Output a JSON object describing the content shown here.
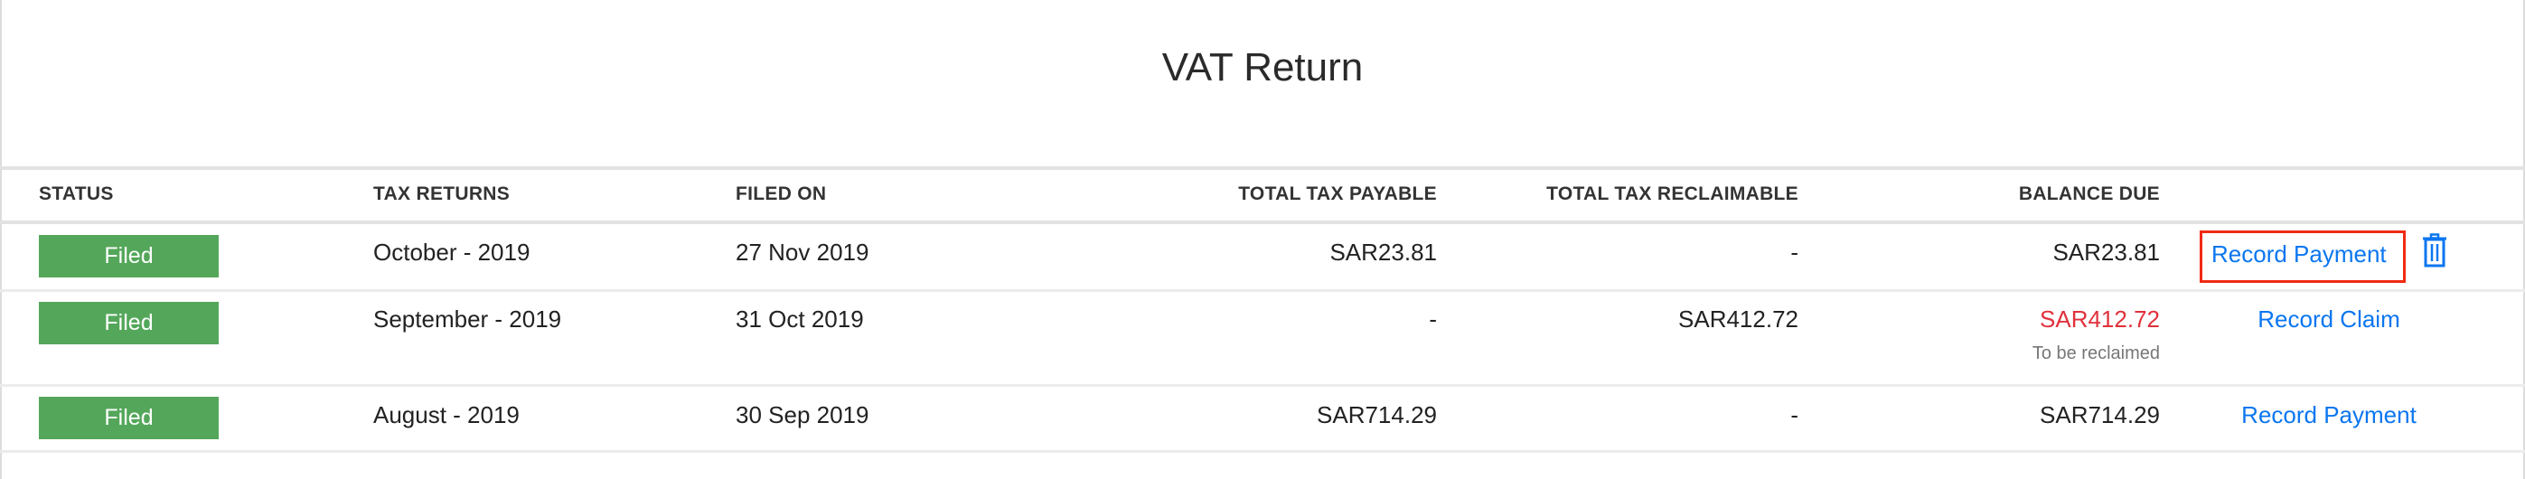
{
  "page": {
    "title": "VAT Return"
  },
  "table": {
    "headers": [
      "STATUS",
      "TAX RETURNS",
      "FILED ON",
      "TOTAL TAX PAYABLE",
      "TOTAL TAX RECLAIMABLE",
      "BALANCE DUE"
    ],
    "rows": [
      {
        "status": "Filed",
        "tax_return": "October - 2019",
        "filed_on": "27 Nov 2019",
        "payable": "SAR23.81",
        "reclaimable": "-",
        "balance": "SAR23.81",
        "balance_note": "",
        "action": "Record Payment",
        "delete_icon": "trash-icon"
      },
      {
        "status": "Filed",
        "tax_return": "September - 2019",
        "filed_on": "31 Oct 2019",
        "payable": "-",
        "reclaimable": "SAR412.72",
        "balance": "SAR412.72",
        "balance_note": "To be reclaimed",
        "action": "Record Claim"
      },
      {
        "status": "Filed",
        "tax_return": "August - 2019",
        "filed_on": "30 Sep 2019",
        "payable": "SAR714.29",
        "reclaimable": "-",
        "balance": "SAR714.29",
        "balance_note": "",
        "action": "Record Payment"
      }
    ]
  },
  "colors": {
    "filed_badge": "#54a75a",
    "link": "#0b76f0",
    "negative_balance": "#e0313c",
    "highlight_box": "#f02a12"
  }
}
